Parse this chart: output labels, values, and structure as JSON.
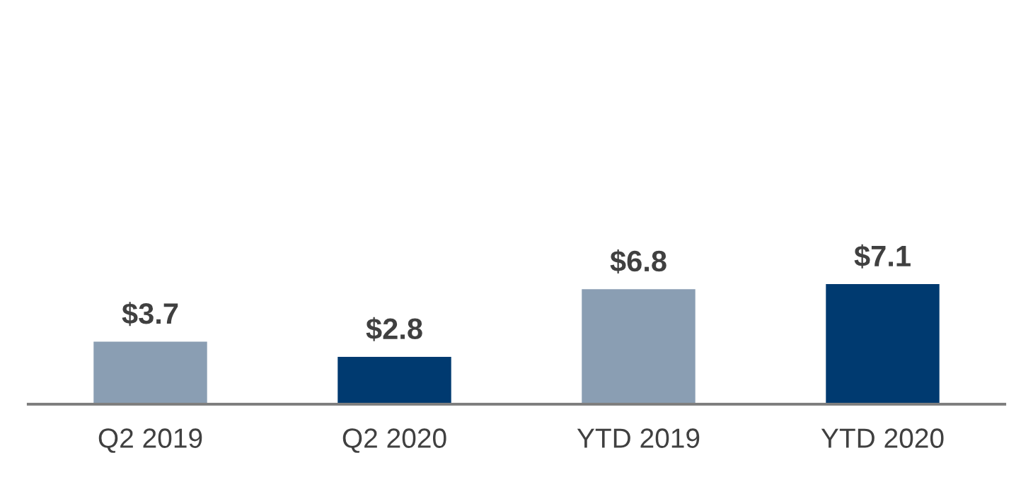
{
  "chart_data": {
    "type": "bar",
    "categories": [
      "Q2 2019",
      "Q2 2020",
      "YTD 2019",
      "YTD 2020"
    ],
    "values": [
      3.7,
      2.8,
      6.8,
      7.1
    ],
    "colors": [
      "#8a9eb3",
      "#003a70",
      "#8a9eb3",
      "#003a70"
    ],
    "value_labels": [
      "$3.7",
      "$2.8",
      "$6.8",
      "$7.1"
    ],
    "tick_labels": "x",
    "grid": false,
    "legend": false
  }
}
